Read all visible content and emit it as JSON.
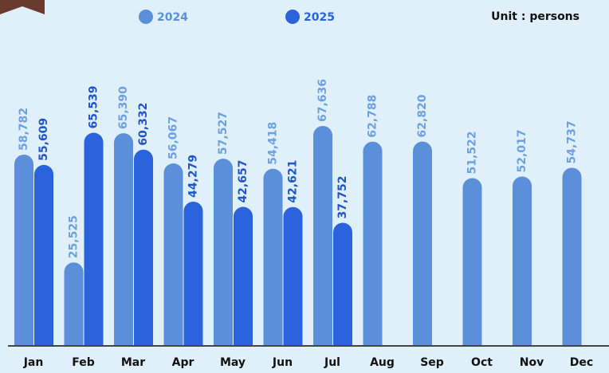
{
  "chart_data": {
    "type": "bar",
    "annotation": "Unit : persons",
    "categories": [
      "Jan",
      "Feb",
      "Mar",
      "Apr",
      "May",
      "Jun",
      "Jul",
      "Aug",
      "Sep",
      "Oct",
      "Nov",
      "Dec"
    ],
    "series": [
      {
        "name": "2024",
        "color": "#5b8fd9",
        "values": [
          58782,
          25525,
          65390,
          56067,
          57527,
          54418,
          67636,
          62788,
          62820,
          51522,
          52017,
          54737
        ],
        "value_labels": [
          "58,782",
          "25,525",
          "65,390",
          "56,067",
          "57,527",
          "54,418",
          "67,636",
          "62,788",
          "62,820",
          "51,522",
          "52,017",
          "54,737"
        ]
      },
      {
        "name": "2025",
        "color": "#2a63db",
        "values": [
          55609,
          65539,
          60332,
          44279,
          42657,
          42621,
          37752,
          null,
          null,
          null,
          null,
          null
        ],
        "value_labels": [
          "55,609",
          "65,539",
          "60,332",
          "44,279",
          "42,657",
          "42,621",
          "37,752",
          null,
          null,
          null,
          null,
          null
        ]
      }
    ]
  }
}
